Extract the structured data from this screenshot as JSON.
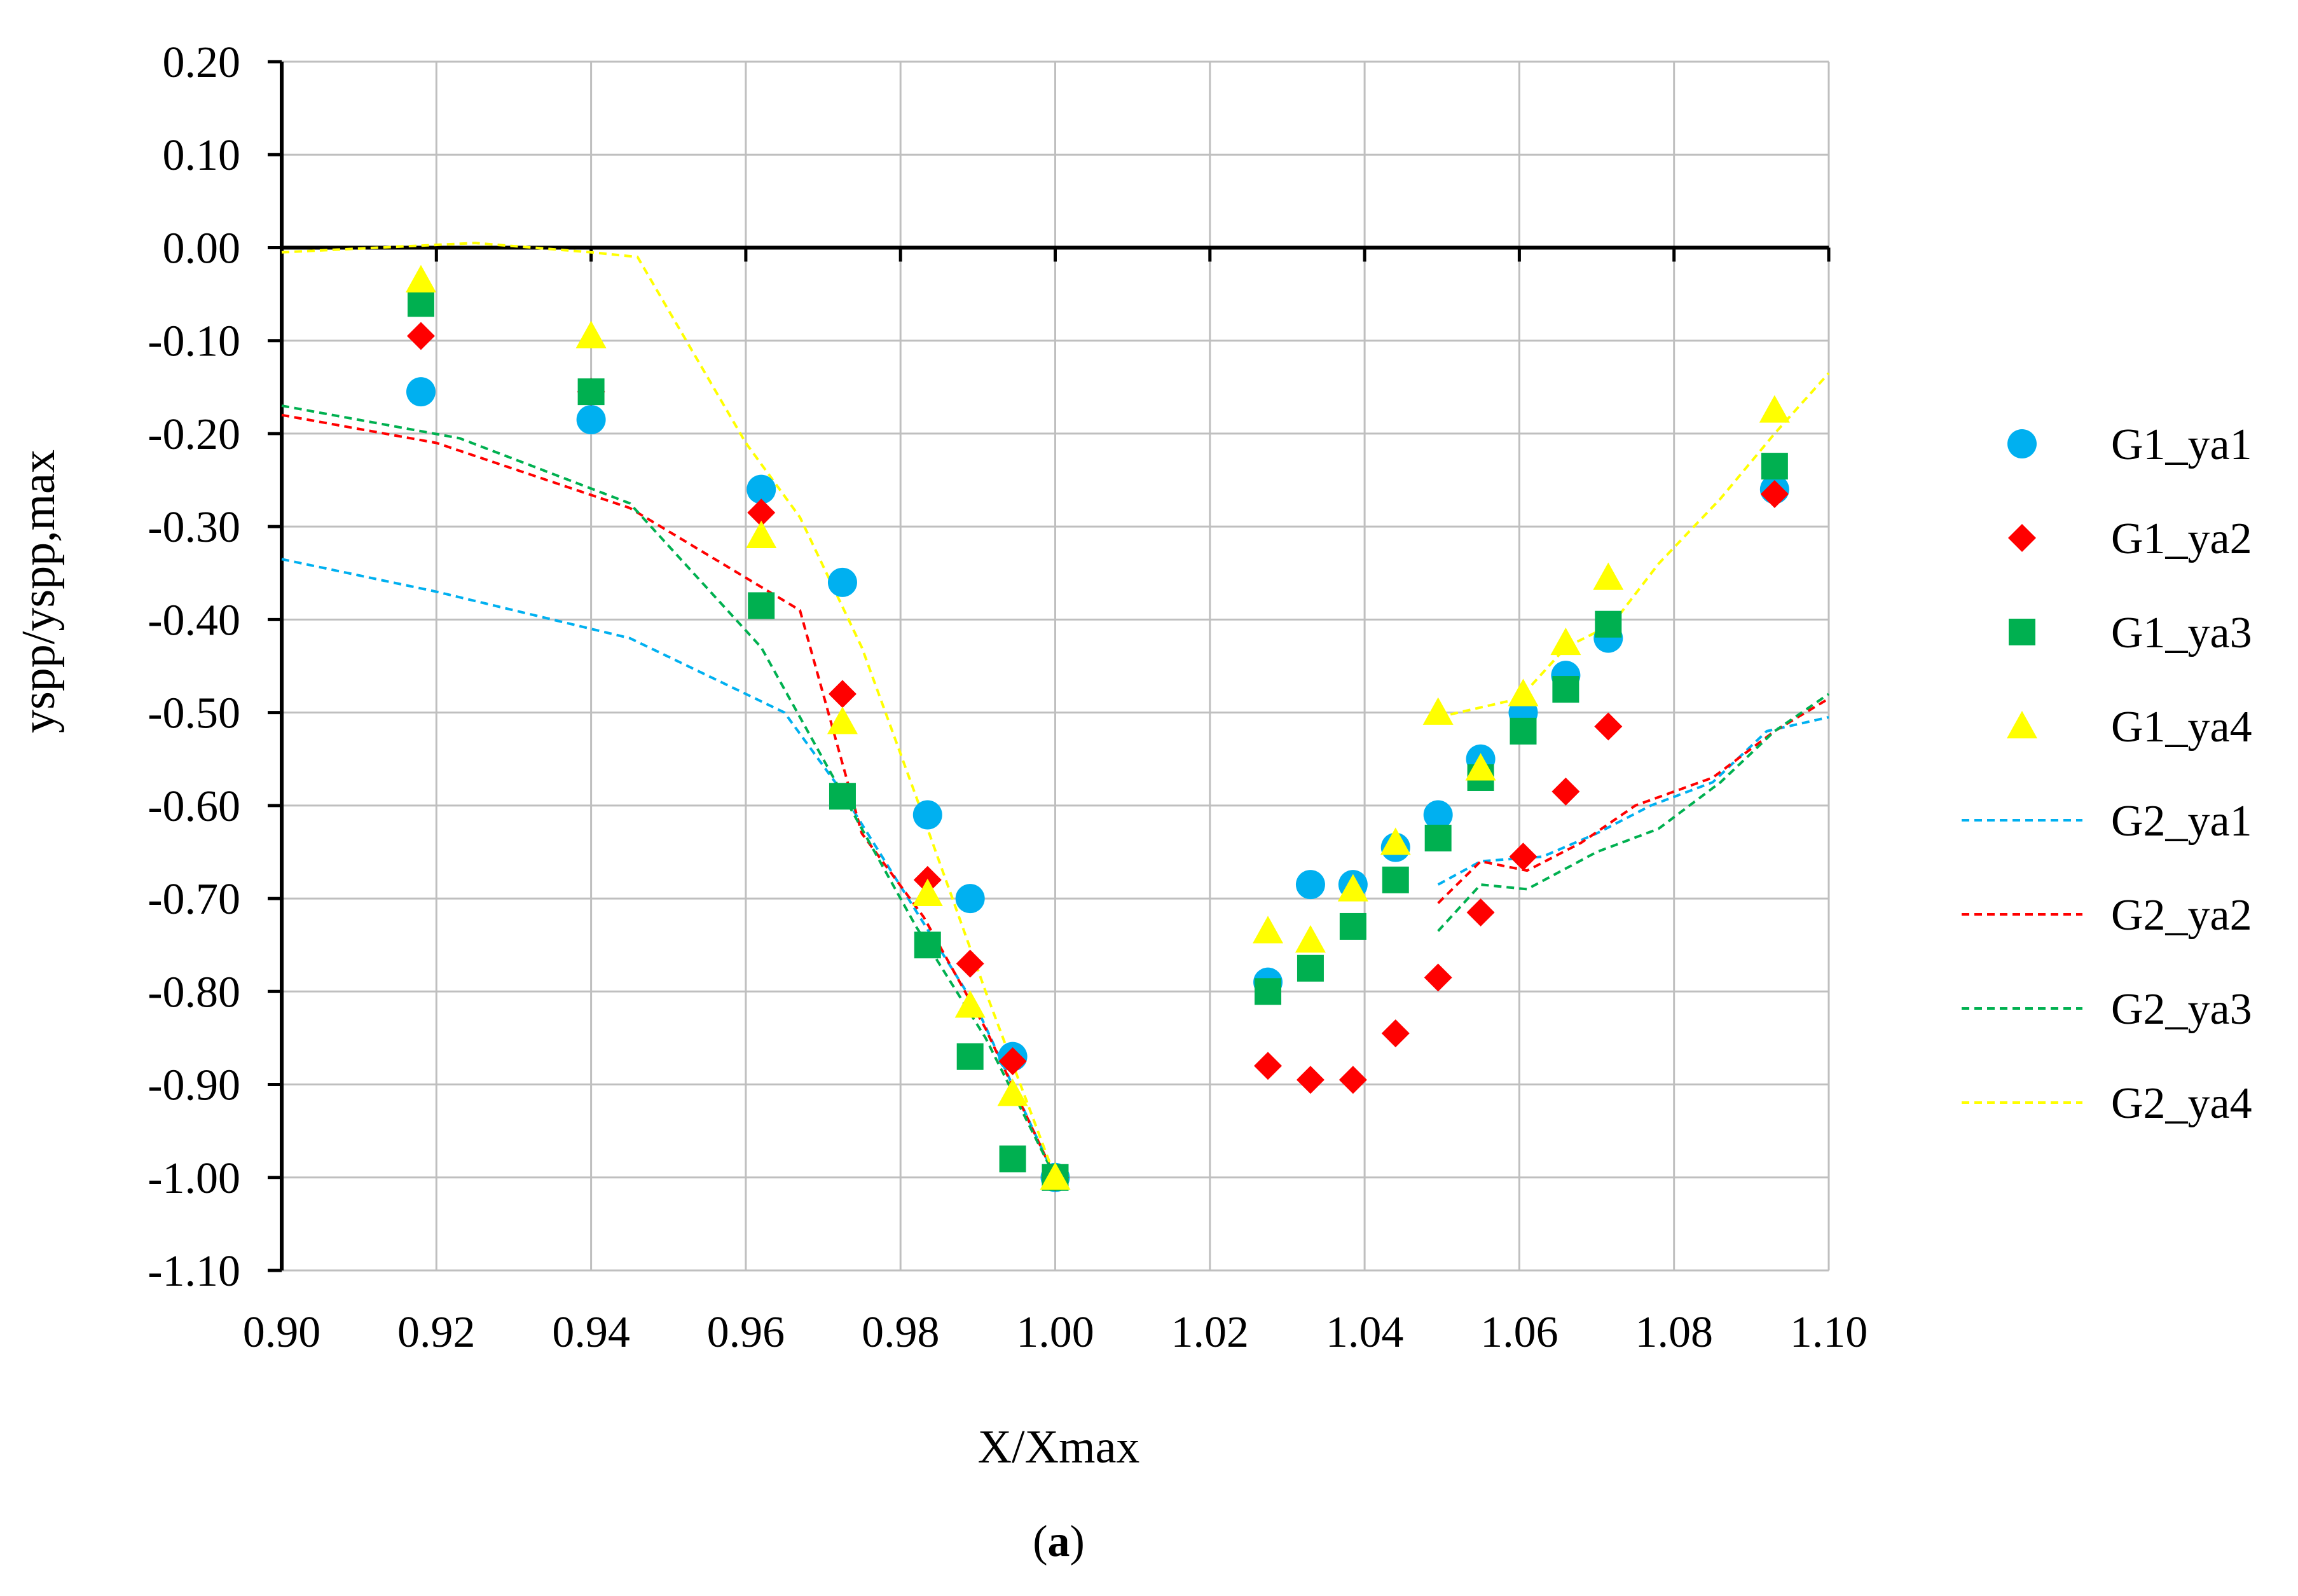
{
  "chart_data": {
    "type": "scatter",
    "xlabel": "X/Xmax",
    "ylabel": "yspp/yspp,max",
    "caption_open": "(",
    "caption_letter": "a",
    "caption_close": ")",
    "xlim": [
      0.9,
      1.1
    ],
    "ylim": [
      -1.1,
      0.2
    ],
    "x_ticks": [
      0.9,
      0.92,
      0.94,
      0.96,
      0.98,
      1.0,
      1.02,
      1.04,
      1.06,
      1.08,
      1.1
    ],
    "y_ticks": [
      0.2,
      0.1,
      0.0,
      -0.1,
      -0.2,
      -0.3,
      -0.4,
      -0.5,
      -0.6,
      -0.7,
      -0.8,
      -0.9,
      -1.0,
      -1.1
    ],
    "grid": true,
    "legend_position": "right",
    "series": [
      {
        "name": "G1_ya1",
        "kind": "marker",
        "marker": "circle",
        "color": "#00B0F0",
        "x": [
          0.918,
          0.94,
          0.962,
          0.9725,
          0.9835,
          0.989,
          0.9945,
          1.0,
          1.0275,
          1.033,
          1.0385,
          1.044,
          1.0495,
          1.055,
          1.0605,
          1.066,
          1.0715,
          1.093
        ],
        "y": [
          -0.155,
          -0.185,
          -0.26,
          -0.36,
          -0.61,
          -0.7,
          -0.87,
          -1.0,
          -0.79,
          -0.685,
          -0.685,
          -0.645,
          -0.61,
          -0.55,
          -0.5,
          -0.46,
          -0.42,
          -0.26
        ]
      },
      {
        "name": "G1_ya2",
        "kind": "marker",
        "marker": "diamond",
        "color": "#FF0000",
        "x": [
          0.918,
          0.94,
          0.962,
          0.9725,
          0.9835,
          0.989,
          0.9945,
          1.0,
          1.0275,
          1.033,
          1.0385,
          1.044,
          1.0495,
          1.055,
          1.0605,
          1.066,
          1.0715,
          1.093
        ],
        "y": [
          -0.095,
          -0.155,
          -0.285,
          -0.48,
          -0.68,
          -0.77,
          -0.875,
          -1.0,
          -0.88,
          -0.895,
          -0.895,
          -0.845,
          -0.785,
          -0.715,
          -0.655,
          -0.585,
          -0.515,
          -0.265
        ]
      },
      {
        "name": "G1_ya3",
        "kind": "marker",
        "marker": "square",
        "color": "#00B050",
        "x": [
          0.918,
          0.94,
          0.962,
          0.9725,
          0.9835,
          0.989,
          0.9945,
          1.0,
          1.0275,
          1.033,
          1.0385,
          1.044,
          1.0495,
          1.055,
          1.0605,
          1.066,
          1.0715,
          1.093
        ],
        "y": [
          -0.06,
          -0.155,
          -0.385,
          -0.59,
          -0.75,
          -0.87,
          -0.98,
          -1.0,
          -0.8,
          -0.775,
          -0.73,
          -0.68,
          -0.635,
          -0.57,
          -0.52,
          -0.475,
          -0.405,
          -0.235
        ]
      },
      {
        "name": "G1_ya4",
        "kind": "marker",
        "marker": "triangle",
        "color": "#FFFF00",
        "x": [
          0.918,
          0.94,
          0.962,
          0.9725,
          0.9835,
          0.989,
          0.9945,
          1.0,
          1.0275,
          1.033,
          1.0385,
          1.044,
          1.0495,
          1.055,
          1.0605,
          1.066,
          1.0715,
          1.093
        ],
        "y": [
          -0.035,
          -0.095,
          -0.31,
          -0.51,
          -0.695,
          -0.815,
          -0.91,
          -1.0,
          -0.735,
          -0.745,
          -0.69,
          -0.64,
          -0.5,
          -0.56,
          -0.48,
          -0.425,
          -0.355,
          -0.175
        ]
      },
      {
        "name": "G2_ya1",
        "kind": "line",
        "dash": "dashed",
        "color": "#00B0F0",
        "segments": [
          {
            "x": [
              0.9,
              0.92,
              0.945,
              0.965,
              0.972,
              0.981,
              0.99,
              1.0
            ],
            "y": [
              -0.335,
              -0.37,
              -0.42,
              -0.5,
              -0.58,
              -0.7,
              -0.82,
              -1.0
            ]
          },
          {
            "x": [
              1.0495,
              1.055,
              1.063,
              1.07,
              1.077,
              1.085,
              1.092,
              1.1
            ],
            "y": [
              -0.685,
              -0.66,
              -0.655,
              -0.63,
              -0.6,
              -0.575,
              -0.52,
              -0.505
            ]
          }
        ]
      },
      {
        "name": "G2_ya2",
        "kind": "line",
        "dash": "dashed",
        "color": "#FF0000",
        "segments": [
          {
            "x": [
              0.9,
              0.92,
              0.945,
              0.967,
              0.975,
              0.983,
              0.991,
              1.0
            ],
            "y": [
              -0.18,
              -0.21,
              -0.28,
              -0.39,
              -0.63,
              -0.72,
              -0.84,
              -1.0
            ]
          },
          {
            "x": [
              1.0495,
              1.055,
              1.061,
              1.068,
              1.075,
              1.085,
              1.093,
              1.1
            ],
            "y": [
              -0.705,
              -0.66,
              -0.67,
              -0.64,
              -0.6,
              -0.57,
              -0.52,
              -0.485
            ]
          }
        ]
      },
      {
        "name": "G2_ya3",
        "kind": "line",
        "dash": "dashed",
        "color": "#00B050",
        "segments": [
          {
            "x": [
              0.9,
              0.923,
              0.945,
              0.962,
              0.972,
              0.982,
              0.991,
              1.0
            ],
            "y": [
              -0.17,
              -0.205,
              -0.275,
              -0.43,
              -0.58,
              -0.73,
              -0.85,
              -1.0
            ]
          },
          {
            "x": [
              1.0495,
              1.055,
              1.061,
              1.07,
              1.078,
              1.086,
              1.093,
              1.1
            ],
            "y": [
              -0.735,
              -0.685,
              -0.69,
              -0.65,
              -0.625,
              -0.575,
              -0.52,
              -0.48
            ]
          }
        ]
      },
      {
        "name": "G2_ya4",
        "kind": "line",
        "dash": "dashed",
        "color": "#FFFF00",
        "segments": [
          {
            "x": [
              0.9,
              0.925,
              0.94,
              0.946,
              0.96,
              0.967,
              0.975,
              0.982,
              0.991,
              1.0
            ],
            "y": [
              -0.005,
              0.005,
              -0.005,
              -0.01,
              -0.21,
              -0.29,
              -0.43,
              -0.59,
              -0.8,
              -1.0
            ]
          },
          {
            "x": [
              1.0495,
              1.06,
              1.066,
              1.072,
              1.078,
              1.086,
              1.093,
              1.1
            ],
            "y": [
              -0.505,
              -0.485,
              -0.43,
              -0.405,
              -0.34,
              -0.27,
              -0.2,
              -0.135
            ]
          }
        ]
      }
    ]
  }
}
